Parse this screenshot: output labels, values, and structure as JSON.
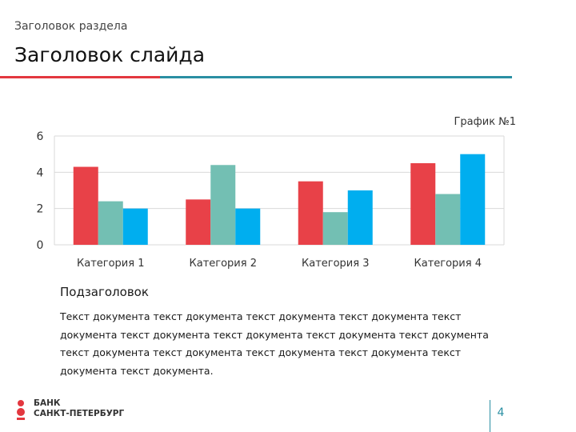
{
  "header": {
    "section_title": "Заголовок раздела",
    "slide_title": "Заголовок слайда"
  },
  "colors": {
    "accent_red": "#e3373f",
    "accent_blue": "#2a8fa3",
    "series_colors": [
      "#e84148",
      "#73bfb3",
      "#00aeef"
    ]
  },
  "chart_data": {
    "type": "bar",
    "title": "График №1",
    "categories": [
      "Категория 1",
      "Категория 2",
      "Категория 3",
      "Категория 4"
    ],
    "series": [
      {
        "values": [
          4.3,
          2.5,
          3.5,
          4.5
        ]
      },
      {
        "values": [
          2.4,
          4.4,
          1.8,
          2.8
        ]
      },
      {
        "values": [
          2.0,
          2.0,
          3.0,
          5.0
        ]
      }
    ],
    "ylim": [
      0,
      6
    ],
    "yticks": [
      0,
      2,
      4,
      6
    ],
    "grid": true,
    "legend": "none"
  },
  "content": {
    "subheading": "Подзаголовок",
    "body": "Текст документа текст документа текст документа текст документа текст документа текст документа текст документа текст документа текст документа текст документа текст документа текст документа текст документа текст документа текст документа."
  },
  "footer": {
    "logo_line1": "БАНК",
    "logo_line2": "САНКТ-ПЕТЕРБУРГ",
    "page_number": "4"
  }
}
